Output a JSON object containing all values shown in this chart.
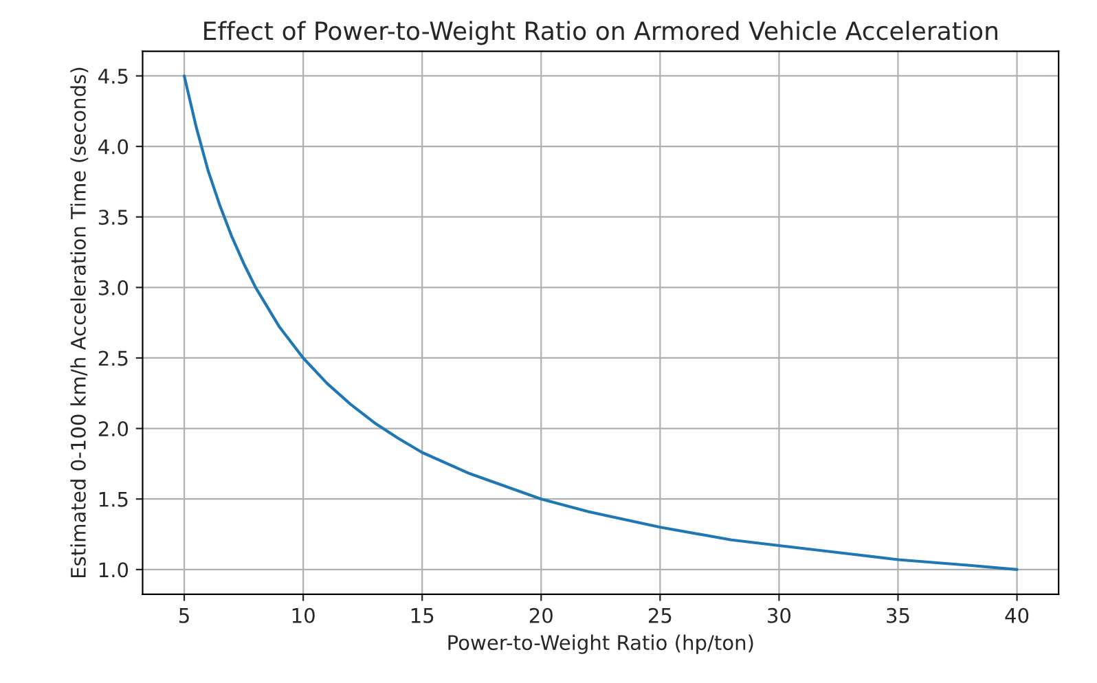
{
  "chart_data": {
    "type": "line",
    "title": "Effect of Power-to-Weight Ratio on Armored Vehicle Acceleration",
    "xlabel": "Power-to-Weight Ratio (hp/ton)",
    "ylabel": "Estimated 0-100 km/h Acceleration Time (seconds)",
    "x": [
      5,
      5.5,
      6,
      6.5,
      7,
      7.5,
      8,
      9,
      10,
      11,
      12,
      13,
      14,
      15,
      17,
      20,
      22,
      25,
      28,
      30,
      33,
      35,
      38,
      40
    ],
    "series": [
      {
        "color": "#1f77b4",
        "values": [
          4.5,
          4.14,
          3.83,
          3.58,
          3.36,
          3.17,
          3.0,
          2.72,
          2.5,
          2.32,
          2.17,
          2.04,
          1.93,
          1.83,
          1.68,
          1.5,
          1.41,
          1.3,
          1.21,
          1.17,
          1.11,
          1.07,
          1.03,
          1.0
        ]
      }
    ],
    "xlim": [
      3.25,
      41.75
    ],
    "ylim": [
      0.825,
      4.675
    ],
    "xticks": [
      5,
      10,
      15,
      20,
      25,
      30,
      35,
      40
    ],
    "yticks": [
      {
        "value": 1.0,
        "label": "1.0"
      },
      {
        "value": 1.5,
        "label": "1.5"
      },
      {
        "value": 2.0,
        "label": "2.0"
      },
      {
        "value": 2.5,
        "label": "2.5"
      },
      {
        "value": 3.0,
        "label": "3.0"
      },
      {
        "value": 3.5,
        "label": "3.5"
      },
      {
        "value": 4.0,
        "label": "4.0"
      },
      {
        "value": 4.5,
        "label": "4.5"
      }
    ],
    "grid": true
  }
}
